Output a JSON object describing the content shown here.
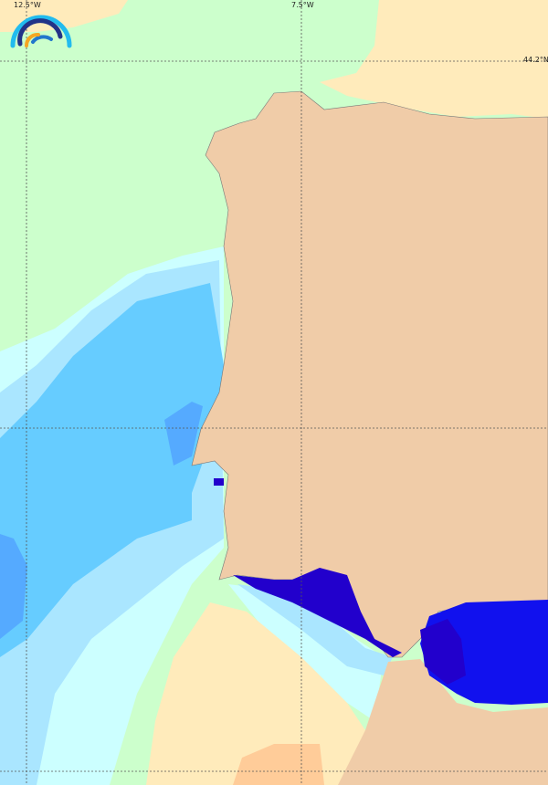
{
  "map": {
    "grid_labels": {
      "lon_left": "12.5°W",
      "lon_right": "7.5°W",
      "lat_top": "44.2°N"
    },
    "logo": "rainbow-arcs-logo",
    "colors": {
      "ocean_base": "#ccffcc",
      "iberia_land": "#f0cca8",
      "other_land": "#ffebbb",
      "land_orange": "#ffcc99",
      "light_cyan": "#ccffff",
      "pale_blue": "#aae6ff",
      "light_blue": "#99ddff",
      "blue": "#66ccff",
      "mid_blue": "#55aaff",
      "deep_blue": "#2200cc",
      "bright_blue": "#1111ee"
    }
  }
}
